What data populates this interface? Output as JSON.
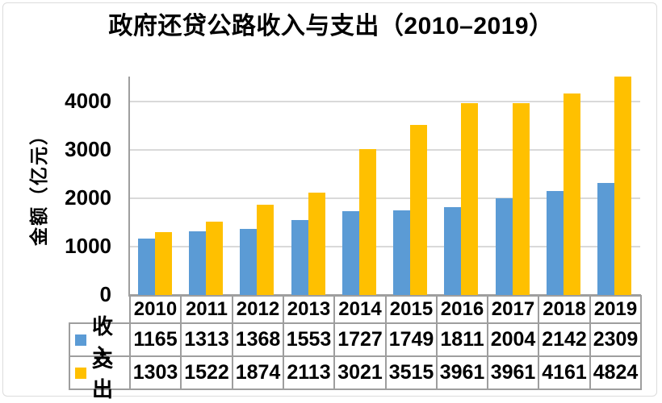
{
  "chart_data": {
    "type": "bar",
    "title": "政府还贷公路收入与支出（2010–2019）",
    "ylabel": "金额（亿元）",
    "xlabel": "",
    "categories": [
      "2010",
      "2011",
      "2012",
      "2013",
      "2014",
      "2015",
      "2016",
      "2017",
      "2018",
      "2019"
    ],
    "series": [
      {
        "name": "收入",
        "slug": "income",
        "color": "#5B9BD5",
        "values": [
          1165,
          1313,
          1368,
          1553,
          1727,
          1749,
          1811,
          2004,
          2142,
          2309
        ]
      },
      {
        "name": "支出",
        "slug": "expense",
        "color": "#FFC000",
        "values": [
          1303,
          1522,
          1874,
          2113,
          3021,
          3515,
          3961,
          3961,
          4161,
          4824
        ]
      }
    ],
    "ylim": [
      0,
      4520
    ],
    "y_ticks": [
      "0",
      "1000",
      "2000",
      "3000",
      "4000"
    ],
    "grid": true,
    "legend_position": "table-left",
    "colors": {
      "gridline": "#D9D9D9",
      "axis": "#9E9E9E",
      "frame": "#DCDCDC",
      "text": "#000000"
    }
  }
}
